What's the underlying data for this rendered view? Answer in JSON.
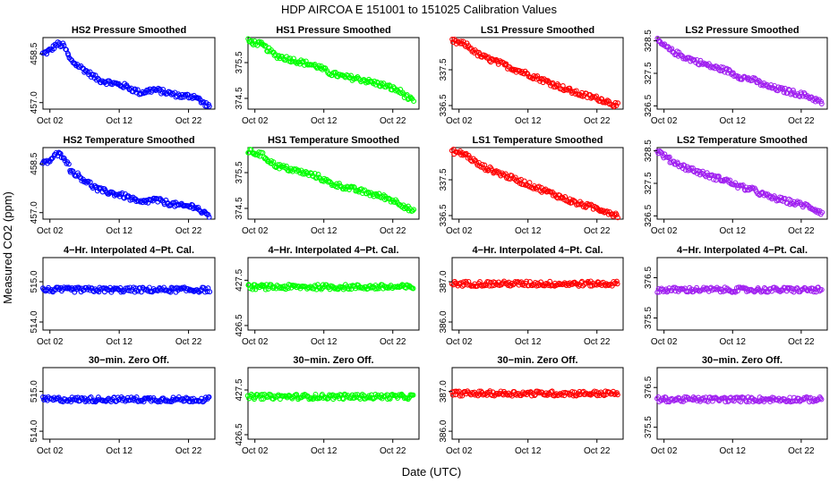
{
  "figure": {
    "title": "HDP   AIRCOA E   151001 to 151025   Calibration Values",
    "xlabel": "Date (UTC)",
    "ylabel": "Measured CO2 (ppm)"
  },
  "chart_data": [
    {
      "type": "scatter",
      "title": "HS2 Pressure Smoothed",
      "color": "#0000ff",
      "xlim": [
        0.0,
        24.8
      ],
      "ylim": [
        456.8,
        459.0
      ],
      "yticks": [
        457.0,
        458.5
      ],
      "xticks": [
        "Oct 02",
        "Oct 12",
        "Oct 22"
      ],
      "xtick_values": [
        1,
        11,
        21
      ],
      "series": [
        {
          "x": [
            0,
            1,
            2,
            3,
            4,
            6,
            8,
            10,
            12,
            14,
            16,
            18,
            20,
            22,
            23,
            24
          ],
          "y": [
            458.5,
            458.6,
            458.8,
            458.75,
            458.3,
            458.0,
            457.7,
            457.6,
            457.5,
            457.3,
            457.4,
            457.3,
            457.2,
            457.2,
            457.0,
            456.9
          ]
        }
      ]
    },
    {
      "type": "scatter",
      "title": "HS1 Pressure Smoothed",
      "color": "#00ff00",
      "xlim": [
        0.0,
        24.8
      ],
      "ylim": [
        374.2,
        376.2
      ],
      "yticks": [
        374.5,
        375.5
      ],
      "xticks": [
        "Oct 02",
        "Oct 12",
        "Oct 22"
      ],
      "xtick_values": [
        1,
        11,
        21
      ],
      "series": [
        {
          "x": [
            0,
            2,
            4,
            6,
            8,
            10,
            12,
            14,
            16,
            18,
            20,
            22,
            24
          ],
          "y": [
            376.1,
            376.0,
            375.7,
            375.6,
            375.5,
            375.4,
            375.2,
            375.1,
            375.05,
            374.95,
            374.85,
            374.7,
            374.4
          ]
        }
      ]
    },
    {
      "type": "scatter",
      "title": "LS1 Pressure Smoothed",
      "color": "#ff0000",
      "xlim": [
        0.0,
        24.8
      ],
      "ylim": [
        336.4,
        338.4
      ],
      "yticks": [
        336.5,
        337.5
      ],
      "xticks": [
        "Oct 02",
        "Oct 12",
        "Oct 22"
      ],
      "xtick_values": [
        1,
        11,
        21
      ],
      "series": [
        {
          "x": [
            0,
            2,
            4,
            6,
            8,
            10,
            12,
            14,
            16,
            18,
            20,
            22,
            24
          ],
          "y": [
            338.3,
            338.2,
            337.9,
            337.75,
            337.6,
            337.45,
            337.3,
            337.15,
            337.0,
            336.85,
            336.75,
            336.65,
            336.5
          ]
        }
      ]
    },
    {
      "type": "scatter",
      "title": "LS2 Pressure Smoothed",
      "color": "#a020f0",
      "xlim": [
        0.0,
        24.8
      ],
      "ylim": [
        326.4,
        328.6
      ],
      "yticks": [
        326.5,
        327.5,
        328.5
      ],
      "xticks": [
        "Oct 02",
        "Oct 12",
        "Oct 22"
      ],
      "xtick_values": [
        1,
        11,
        21
      ],
      "series": [
        {
          "x": [
            0,
            2,
            4,
            6,
            8,
            10,
            12,
            14,
            16,
            18,
            20,
            22,
            24
          ],
          "y": [
            328.5,
            328.2,
            328.0,
            327.85,
            327.7,
            327.6,
            327.4,
            327.3,
            327.1,
            327.0,
            326.9,
            326.8,
            326.6
          ]
        }
      ]
    },
    {
      "type": "scatter",
      "title": "HS2 Temperature Smoothed",
      "color": "#0000ff",
      "xlim": [
        0.0,
        24.8
      ],
      "ylim": [
        456.8,
        459.0
      ],
      "yticks": [
        457.0,
        458.5
      ],
      "xticks": [
        "Oct 02",
        "Oct 12",
        "Oct 22"
      ],
      "xtick_values": [
        1,
        11,
        21
      ],
      "series": [
        {
          "x": [
            0,
            1,
            2,
            3,
            4,
            6,
            8,
            10,
            12,
            14,
            16,
            18,
            20,
            22,
            23,
            24
          ],
          "y": [
            458.5,
            458.6,
            458.8,
            458.75,
            458.3,
            458.0,
            457.7,
            457.6,
            457.5,
            457.3,
            457.4,
            457.3,
            457.2,
            457.2,
            457.0,
            456.9
          ]
        }
      ]
    },
    {
      "type": "scatter",
      "title": "HS1 Temperature Smoothed",
      "color": "#00ff00",
      "xlim": [
        0.0,
        24.8
      ],
      "ylim": [
        374.2,
        376.2
      ],
      "yticks": [
        374.5,
        375.5
      ],
      "xticks": [
        "Oct 02",
        "Oct 12",
        "Oct 22"
      ],
      "xtick_values": [
        1,
        11,
        21
      ],
      "series": [
        {
          "x": [
            0,
            2,
            4,
            6,
            8,
            10,
            12,
            14,
            16,
            18,
            20,
            22,
            24
          ],
          "y": [
            376.1,
            376.0,
            375.7,
            375.6,
            375.5,
            375.4,
            375.2,
            375.1,
            375.0,
            374.9,
            374.8,
            374.65,
            374.4
          ]
        }
      ]
    },
    {
      "type": "scatter",
      "title": "LS1 Temperature Smoothed",
      "color": "#ff0000",
      "xlim": [
        0.0,
        24.8
      ],
      "ylim": [
        336.4,
        338.4
      ],
      "yticks": [
        336.5,
        337.5
      ],
      "xticks": [
        "Oct 02",
        "Oct 12",
        "Oct 22"
      ],
      "xtick_values": [
        1,
        11,
        21
      ],
      "series": [
        {
          "x": [
            0,
            2,
            4,
            6,
            8,
            10,
            12,
            14,
            16,
            18,
            20,
            22,
            24
          ],
          "y": [
            338.3,
            338.2,
            337.9,
            337.75,
            337.6,
            337.45,
            337.3,
            337.15,
            337.0,
            336.85,
            336.75,
            336.65,
            336.5
          ]
        }
      ]
    },
    {
      "type": "scatter",
      "title": "LS2 Temperature Smoothed",
      "color": "#a020f0",
      "xlim": [
        0.0,
        24.8
      ],
      "ylim": [
        326.4,
        328.6
      ],
      "yticks": [
        326.5,
        327.5,
        328.5
      ],
      "xticks": [
        "Oct 02",
        "Oct 12",
        "Oct 22"
      ],
      "xtick_values": [
        1,
        11,
        21
      ],
      "series": [
        {
          "x": [
            0,
            2,
            4,
            6,
            8,
            10,
            12,
            14,
            16,
            18,
            20,
            22,
            24
          ],
          "y": [
            328.5,
            328.2,
            328.0,
            327.85,
            327.7,
            327.6,
            327.4,
            327.3,
            327.1,
            327.0,
            326.9,
            326.8,
            326.6
          ]
        }
      ]
    },
    {
      "type": "scatter",
      "title": "4−Hr. Interpolated 4−Pt. Cal.",
      "color": "#0000ff",
      "xlim": [
        0.0,
        24.8
      ],
      "ylim": [
        513.8,
        515.6
      ],
      "yticks": [
        514.0,
        515.0
      ],
      "xticks": [
        "Oct 02",
        "Oct 12",
        "Oct 22"
      ],
      "xtick_values": [
        1,
        11,
        21
      ],
      "series": [
        {
          "x": [
            0,
            24
          ],
          "y": [
            514.8,
            514.8
          ]
        }
      ]
    },
    {
      "type": "scatter",
      "title": "4−Hr. Interpolated 4−Pt. Cal.",
      "color": "#00ff00",
      "xlim": [
        0.0,
        24.8
      ],
      "ylim": [
        426.4,
        428.0
      ],
      "yticks": [
        426.5,
        427.5
      ],
      "xticks": [
        "Oct 02",
        "Oct 12",
        "Oct 22"
      ],
      "xtick_values": [
        1,
        11,
        21
      ],
      "series": [
        {
          "x": [
            0,
            24
          ],
          "y": [
            427.35,
            427.35
          ]
        }
      ]
    },
    {
      "type": "scatter",
      "title": "4−Hr. Interpolated 4−Pt. Cal.",
      "color": "#ff0000",
      "xlim": [
        0.0,
        24.8
      ],
      "ylim": [
        385.8,
        387.6
      ],
      "yticks": [
        386.0,
        387.0
      ],
      "xticks": [
        "Oct 02",
        "Oct 12",
        "Oct 22"
      ],
      "xtick_values": [
        1,
        11,
        21
      ],
      "series": [
        {
          "x": [
            0,
            24
          ],
          "y": [
            386.95,
            386.95
          ]
        }
      ]
    },
    {
      "type": "scatter",
      "title": "4−Hr. Interpolated 4−Pt. Cal.",
      "color": "#a020f0",
      "xlim": [
        0.0,
        24.8
      ],
      "ylim": [
        375.2,
        377.0
      ],
      "yticks": [
        375.5,
        376.5
      ],
      "xticks": [
        "Oct 02",
        "Oct 12",
        "Oct 22"
      ],
      "xtick_values": [
        1,
        11,
        21
      ],
      "series": [
        {
          "x": [
            0,
            24
          ],
          "y": [
            376.2,
            376.2
          ]
        }
      ]
    },
    {
      "type": "scatter",
      "title": "30−min. Zero Off.",
      "color": "#0000ff",
      "xlim": [
        0.0,
        24.8
      ],
      "ylim": [
        513.8,
        515.6
      ],
      "yticks": [
        514.0,
        515.0
      ],
      "xticks": [
        "Oct 02",
        "Oct 12",
        "Oct 22"
      ],
      "xtick_values": [
        1,
        11,
        21
      ],
      "series": [
        {
          "x": [
            0,
            24
          ],
          "y": [
            514.8,
            514.8
          ]
        }
      ]
    },
    {
      "type": "scatter",
      "title": "30−min. Zero Off.",
      "color": "#00ff00",
      "xlim": [
        0.0,
        24.8
      ],
      "ylim": [
        426.4,
        428.0
      ],
      "yticks": [
        426.5,
        427.5
      ],
      "xticks": [
        "Oct 02",
        "Oct 12",
        "Oct 22"
      ],
      "xtick_values": [
        1,
        11,
        21
      ],
      "series": [
        {
          "x": [
            0,
            24
          ],
          "y": [
            427.35,
            427.35
          ]
        }
      ]
    },
    {
      "type": "scatter",
      "title": "30−min. Zero Off.",
      "color": "#ff0000",
      "xlim": [
        0.0,
        24.8
      ],
      "ylim": [
        385.8,
        387.6
      ],
      "yticks": [
        386.0,
        387.0
      ],
      "xticks": [
        "Oct 02",
        "Oct 12",
        "Oct 22"
      ],
      "xtick_values": [
        1,
        11,
        21
      ],
      "series": [
        {
          "x": [
            0,
            24
          ],
          "y": [
            386.95,
            386.95
          ]
        }
      ]
    },
    {
      "type": "scatter",
      "title": "30−min. Zero Off.",
      "color": "#a020f0",
      "xlim": [
        0.0,
        24.8
      ],
      "ylim": [
        375.2,
        377.0
      ],
      "yticks": [
        375.5,
        376.5
      ],
      "xticks": [
        "Oct 02",
        "Oct 12",
        "Oct 22"
      ],
      "xtick_values": [
        1,
        11,
        21
      ],
      "series": [
        {
          "x": [
            0,
            24
          ],
          "y": [
            376.2,
            376.2
          ]
        }
      ]
    }
  ]
}
